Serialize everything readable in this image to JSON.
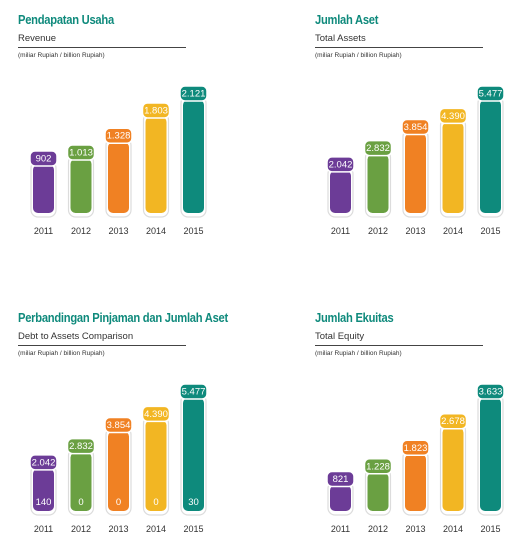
{
  "chart_data": [
    {
      "type": "bar",
      "title": "Pendapatan Usaha",
      "subtitle": "Revenue",
      "unit_note": "(miliar Rupiah / billion Rupiah)",
      "categories": [
        "2011",
        "2012",
        "2013",
        "2014",
        "2015"
      ],
      "values_label": [
        "902",
        "1.013",
        "1.328",
        "1.803",
        "2.121"
      ],
      "values": [
        902,
        1013,
        1328,
        1803,
        2121
      ],
      "ylim": [
        0,
        2121
      ]
    },
    {
      "type": "bar",
      "title": "Jumlah Aset",
      "subtitle": "Total Assets",
      "unit_note": "(miliar Rupiah / billion Rupiah)",
      "categories": [
        "2011",
        "2012",
        "2013",
        "2014",
        "2015"
      ],
      "values_label": [
        "2.042",
        "2.832",
        "3.854",
        "4.390",
        "5.477"
      ],
      "values": [
        2042,
        2832,
        3854,
        4390,
        5477
      ],
      "ylim": [
        0,
        5477
      ]
    },
    {
      "type": "bar",
      "title": "Perbandingan Pinjaman dan Jumlah Aset",
      "subtitle": "Debt to Assets Comparison",
      "unit_note": "(miliar Rupiah / billion Rupiah)",
      "categories": [
        "2011",
        "2012",
        "2013",
        "2014",
        "2015"
      ],
      "values_label": [
        "2.042",
        "2.832",
        "3.854",
        "4.390",
        "5.477"
      ],
      "values": [
        2042,
        2832,
        3854,
        4390,
        5477
      ],
      "inner_values": [
        140,
        0,
        0,
        0,
        30
      ],
      "ylim": [
        0,
        5477
      ]
    },
    {
      "type": "bar",
      "title": "Jumlah Ekuitas",
      "subtitle": "Total Equity",
      "unit_note": "(miliar Rupiah / billion Rupiah)",
      "categories": [
        "2011",
        "2012",
        "2013",
        "2014",
        "2015"
      ],
      "values_label": [
        "821",
        "1.228",
        "1.823",
        "2.678",
        "3.633"
      ],
      "values": [
        821,
        1228,
        1823,
        2678,
        3633
      ],
      "ylim": [
        0,
        3633
      ]
    }
  ],
  "colors": {
    "bars": [
      "#6c3c97",
      "#6aa042",
      "#f08123",
      "#f2b623",
      "#0e8a7c"
    ],
    "title": "#0f8a7c"
  }
}
